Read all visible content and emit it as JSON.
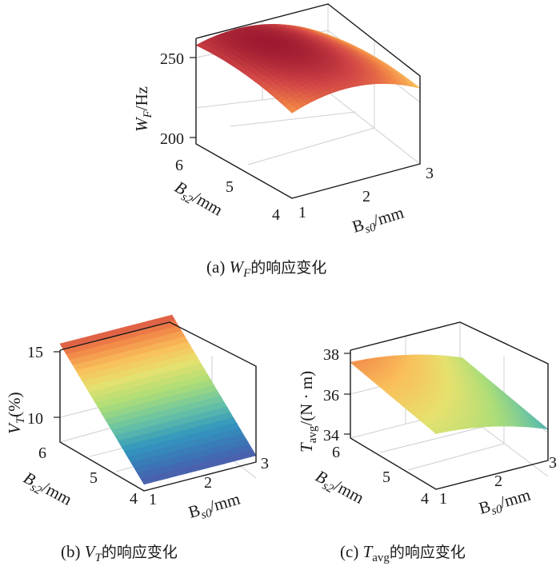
{
  "chart_data": [
    {
      "type": "surface",
      "caption": {
        "prefix": "(a) ",
        "var": "W",
        "sub": "F",
        "suffix": "的响应变化"
      },
      "xlabel": {
        "base": "B",
        "sub": "s0",
        "unit": "/mm"
      },
      "ylabel": {
        "base": "B",
        "sub": "s2",
        "unit": "/mm"
      },
      "zlabel": {
        "base": "W",
        "sub": "F",
        "unit": "/Hz"
      },
      "x_ticks": [
        "1",
        "2",
        "3"
      ],
      "y_ticks": [
        "4",
        "5",
        "6"
      ],
      "z_ticks": [
        "200",
        "250"
      ],
      "xlim": [
        1,
        3
      ],
      "ylim": [
        4,
        6
      ],
      "zlim": [
        195,
        262
      ],
      "model": {
        "a": 260,
        "bx": -5,
        "cx": -9,
        "by": 2.2,
        "cy": -3.5,
        "bxy": -2
      },
      "colormap": "spectral",
      "grid": true
    },
    {
      "type": "surface",
      "caption": {
        "prefix": "(b) ",
        "var": "V",
        "sub": "T",
        "suffix": "的响应变化"
      },
      "xlabel": {
        "base": "B",
        "sub": "s0",
        "unit": "/mm"
      },
      "ylabel": {
        "base": "B",
        "sub": "s2",
        "unit": "/mm"
      },
      "zlabel": {
        "base": "V",
        "sub": "T",
        "unit": "(%)"
      },
      "x_ticks": [
        "1",
        "2",
        "3"
      ],
      "y_ticks": [
        "4",
        "5",
        "6"
      ],
      "z_ticks": [
        "10",
        "15"
      ],
      "xlim": [
        1,
        3
      ],
      "ylim": [
        4,
        6
      ],
      "zlim": [
        7.5,
        16
      ],
      "model": {
        "a": 11.5,
        "bx": 0,
        "cx": 0,
        "by": 3.5,
        "cy": 0,
        "bxy": 0
      },
      "colormap": "spectral",
      "grid": true
    },
    {
      "type": "surface",
      "caption": {
        "prefix": "(c) ",
        "var": "T",
        "sub": "avg",
        "suffix": "的响应变化"
      },
      "xlabel": {
        "base": "B",
        "sub": "s0",
        "unit": "/mm"
      },
      "ylabel": {
        "base": "B",
        "sub": "s2",
        "unit": "/mm"
      },
      "zlabel": {
        "base": "T",
        "sub": "avg",
        "unit": "/(N · m)"
      },
      "x_ticks": [
        "1",
        "2",
        "3"
      ],
      "y_ticks": [
        "4",
        "5",
        "6"
      ],
      "z_ticks": [
        "34",
        "36",
        "38"
      ],
      "xlim": [
        1,
        3
      ],
      "ylim": [
        4,
        6
      ],
      "zlim": [
        33.6,
        38.3
      ],
      "model": {
        "a": 36.5,
        "bx": -0.6,
        "cx": -0.25,
        "by": 0.5,
        "cy": 0,
        "bxy": 0
      },
      "colormap": "spectral",
      "grid": true
    }
  ]
}
